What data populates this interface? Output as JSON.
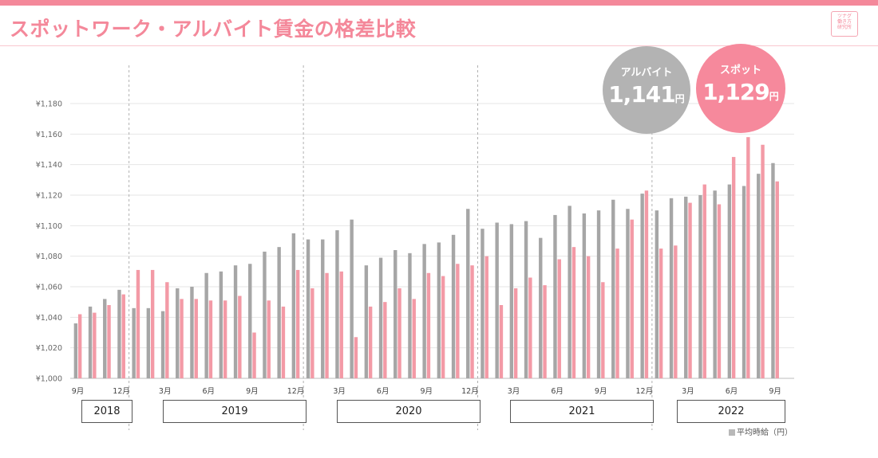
{
  "header": {
    "title": "スポットワーク・アルバイト賃金の格差比較",
    "logo_lines": [
      "ツナグ",
      "働き方",
      "研究所"
    ]
  },
  "colors": {
    "accent": "#f4889a",
    "albaito": "#a6a6a6",
    "spot": "#f39aa6"
  },
  "callouts": {
    "albaito": {
      "label": "アルバイト",
      "value": "1,141",
      "unit": "円"
    },
    "spot": {
      "label": "スポット",
      "value": "1,129",
      "unit": "円"
    }
  },
  "legend": {
    "label": "平均時給（円）"
  },
  "chart_data": {
    "type": "bar",
    "title": "スポットワーク・アルバイト賃金の格差比較",
    "xlabel": "",
    "ylabel": "",
    "ylim": [
      1000,
      1180
    ],
    "yticks": [
      1000,
      1020,
      1040,
      1060,
      1080,
      1100,
      1120,
      1140,
      1160,
      1180
    ],
    "ytick_labels": [
      "¥1,000",
      "¥1,020",
      "¥1,040",
      "¥1,060",
      "¥1,080",
      "¥1,100",
      "¥1,120",
      "¥1,140",
      "¥1,160",
      "¥1,180"
    ],
    "grid": true,
    "categories": [
      "2018-09",
      "2018-10",
      "2018-11",
      "2018-12",
      "2019-01",
      "2019-02",
      "2019-03",
      "2019-04",
      "2019-05",
      "2019-06",
      "2019-07",
      "2019-08",
      "2019-09",
      "2019-10",
      "2019-11",
      "2019-12",
      "2020-01",
      "2020-02",
      "2020-03",
      "2020-04",
      "2020-05",
      "2020-06",
      "2020-07",
      "2020-08",
      "2020-09",
      "2020-10",
      "2020-11",
      "2020-12",
      "2021-01",
      "2021-02",
      "2021-03",
      "2021-04",
      "2021-05",
      "2021-06",
      "2021-07",
      "2021-08",
      "2021-09",
      "2021-10",
      "2021-11",
      "2021-12",
      "2022-01",
      "2022-02",
      "2022-03",
      "2022-04",
      "2022-05",
      "2022-06",
      "2022-07",
      "2022-08",
      "2022-09"
    ],
    "x_tick_labels": [
      "9月",
      "",
      "",
      "12月",
      "",
      "",
      "3月",
      "",
      "",
      "6月",
      "",
      "",
      "9月",
      "",
      "",
      "12月",
      "",
      "",
      "3月",
      "",
      "",
      "6月",
      "",
      "",
      "9月",
      "",
      "",
      "12月",
      "",
      "",
      "3月",
      "",
      "",
      "6月",
      "",
      "",
      "9月",
      "",
      "",
      "12月",
      "",
      "",
      "3月",
      "",
      "",
      "6月",
      "",
      "",
      "9月"
    ],
    "series": [
      {
        "name": "アルバイト",
        "color": "#a6a6a6",
        "values": [
          1036,
          1047,
          1052,
          1058,
          1046,
          1046,
          1044,
          1059,
          1060,
          1069,
          1070,
          1074,
          1075,
          1083,
          1086,
          1095,
          1091,
          1091,
          1097,
          1104,
          1074,
          1079,
          1084,
          1082,
          1088,
          1089,
          1094,
          1111,
          1098,
          1102,
          1101,
          1103,
          1092,
          1107,
          1113,
          1108,
          1110,
          1117,
          1111,
          1121,
          1110,
          1118,
          1119,
          1120,
          1123,
          1127,
          1126,
          1134,
          1141
        ]
      },
      {
        "name": "スポット",
        "color": "#f39aa6",
        "values": [
          1042,
          1043,
          1048,
          1055,
          1071,
          1071,
          1063,
          1052,
          1052,
          1051,
          1051,
          1054,
          1030,
          1051,
          1047,
          1071,
          1059,
          1069,
          1070,
          1027,
          1047,
          1050,
          1059,
          1052,
          1069,
          1067,
          1075,
          1074,
          1080,
          1048,
          1059,
          1066,
          1061,
          1078,
          1086,
          1080,
          1063,
          1085,
          1104,
          1123,
          1085,
          1087,
          1115,
          1127,
          1114,
          1145,
          1158,
          1153,
          1129
        ]
      }
    ],
    "year_groups": [
      {
        "label": "2018",
        "from": 0,
        "to": 3
      },
      {
        "label": "2019",
        "from": 4,
        "to": 15
      },
      {
        "label": "2020",
        "from": 16,
        "to": 27
      },
      {
        "label": "2021",
        "from": 28,
        "to": 39
      },
      {
        "label": "2022",
        "from": 40,
        "to": 48
      }
    ],
    "year_separators_after": [
      3,
      15,
      27,
      39
    ]
  }
}
